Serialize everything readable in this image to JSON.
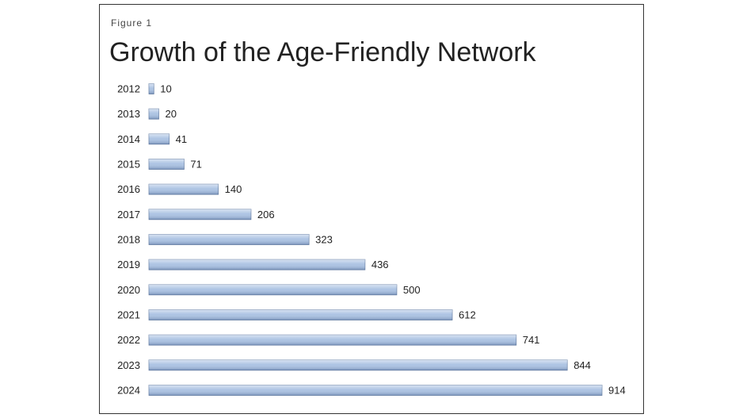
{
  "chart_data": {
    "type": "bar",
    "orientation": "horizontal",
    "figure_label": "Figure 1",
    "title": "Growth of the Age-Friendly Network",
    "categories": [
      "2012",
      "2013",
      "2014",
      "2015",
      "2016",
      "2017",
      "2018",
      "2019",
      "2020",
      "2021",
      "2022",
      "2023",
      "2024"
    ],
    "values": [
      10,
      20,
      41,
      71,
      140,
      206,
      323,
      436,
      500,
      612,
      741,
      844,
      914
    ],
    "color": "#a9c1e2"
  }
}
